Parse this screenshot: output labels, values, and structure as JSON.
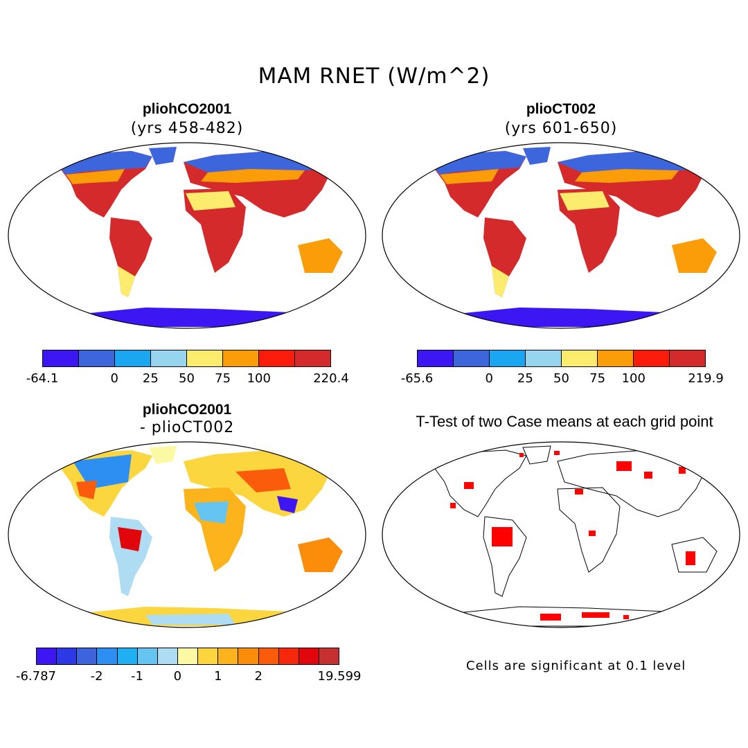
{
  "title": "MAM RNET (W/m^2)",
  "panels": {
    "top_left": {
      "title": "pliohCO2001",
      "subtitle": "(yrs 458-482)"
    },
    "top_right": {
      "title": "plioCT002",
      "subtitle": "(yrs 601-650)"
    },
    "bottom_left": {
      "title": "pliohCO2001",
      "subtitle": "- plioCT002"
    },
    "bottom_right": {
      "title": "T-Test of two Case means at each grid point",
      "footnote": "Cells are significant at 0.1 level"
    }
  },
  "colorbars": {
    "top_left": {
      "colors": [
        "#3c17f4",
        "#3d66dd",
        "#1aa6f1",
        "#97d5ef",
        "#fbec6d",
        "#fb9d09",
        "#fb1c0b",
        "#d42a2c"
      ],
      "labels": [
        "-64.1",
        "0",
        "25",
        "50",
        "75",
        "100",
        "220.4"
      ]
    },
    "top_right": {
      "colors": [
        "#3c17f4",
        "#3d66dd",
        "#1aa6f1",
        "#97d5ef",
        "#fbec6d",
        "#fb9d09",
        "#fb1c0b",
        "#d42a2c"
      ],
      "labels": [
        "-65.6",
        "0",
        "25",
        "50",
        "75",
        "100",
        "219.9"
      ]
    },
    "bottom_left": {
      "colors": [
        "#3e16f3",
        "#2c39e4",
        "#3d64dc",
        "#2e8ff3",
        "#1fb0f3",
        "#66c4f0",
        "#aedcf2",
        "#fbf9a3",
        "#fcd63e",
        "#fdb31b",
        "#fb8d0a",
        "#fa5c0b",
        "#f7270c",
        "#e0060c",
        "#c73030"
      ],
      "labels": [
        "-6.787",
        "-2",
        "-1",
        "0",
        "1",
        "2",
        "19.599"
      ]
    }
  },
  "icons": {
    "map": "robinson-world-map",
    "significance": "significance-dots"
  }
}
